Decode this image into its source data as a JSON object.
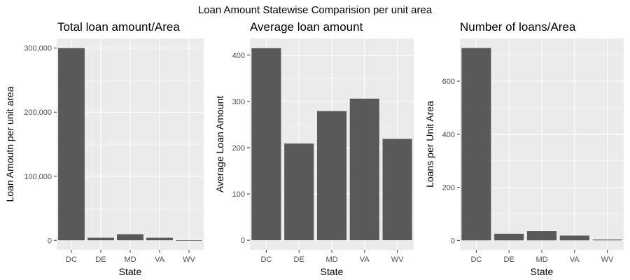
{
  "figure": {
    "title": "Loan Amount Statewise Comparision per unit area",
    "panel_background": "#ebebeb",
    "bar_color": "#595959"
  },
  "chart_data": [
    {
      "type": "bar",
      "title": "Total loan amount/Area",
      "xlabel": "State",
      "ylabel": "Loan Amoutn per unit area",
      "categories": [
        "DC",
        "DE",
        "MD",
        "VA",
        "WV"
      ],
      "values": [
        300000,
        4000,
        9500,
        4000,
        100
      ],
      "ylim": [
        -15000,
        315000
      ],
      "yticks": [
        0,
        100000,
        200000
      ],
      "ytick_labels": [
        "0",
        "100,000",
        "200,000"
      ],
      "extra_tick": {
        "value": 300000,
        "label": "300,000"
      },
      "grid": true
    },
    {
      "type": "bar",
      "title": "Average loan amount",
      "xlabel": "State",
      "ylabel": "Average Loan Amount",
      "categories": [
        "DC",
        "DE",
        "MD",
        "VA",
        "WV"
      ],
      "values": [
        415,
        209,
        279,
        306,
        219
      ],
      "ylim": [
        -21,
        436
      ],
      "yticks": [
        0,
        100,
        200,
        300,
        400
      ],
      "ytick_labels": [
        "0",
        "100",
        "200",
        "300",
        "400"
      ],
      "grid": true
    },
    {
      "type": "bar",
      "title": "Number of loans/Area",
      "xlabel": "State",
      "ylabel": "Loans per Unit Area",
      "categories": [
        "DC",
        "DE",
        "MD",
        "VA",
        "WV"
      ],
      "values": [
        725,
        25,
        35,
        18,
        3
      ],
      "ylim": [
        -36,
        761
      ],
      "yticks": [
        0,
        200,
        400,
        600
      ],
      "ytick_labels": [
        "0",
        "200",
        "400",
        "600"
      ],
      "grid": true
    }
  ]
}
